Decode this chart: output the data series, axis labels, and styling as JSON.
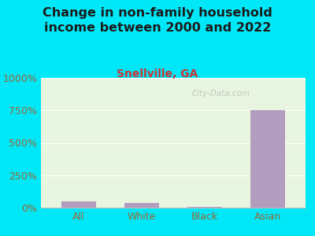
{
  "title": "Change in non-family household\nincome between 2000 and 2022",
  "subtitle": "Snellville, GA",
  "categories": [
    "All",
    "White",
    "Black",
    "Asian"
  ],
  "values": [
    50,
    38,
    8,
    750
  ],
  "bar_color": "#b39dbe",
  "background_outer": "#00e8f8",
  "background_plot": "#e8f5e0",
  "title_color": "#1a1a1a",
  "subtitle_color": "#cc3333",
  "axis_label_color": "#996633",
  "tick_label_color": "#996633",
  "ylim": [
    0,
    1000
  ],
  "yticks": [
    0,
    250,
    500,
    750,
    1000
  ],
  "ytick_labels": [
    "0%",
    "250%",
    "500%",
    "750%",
    "1000%"
  ],
  "watermark": "City-Data.com",
  "title_fontsize": 11.5,
  "subtitle_fontsize": 10,
  "tick_fontsize": 9
}
